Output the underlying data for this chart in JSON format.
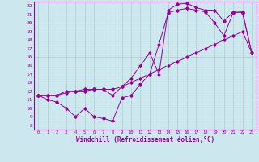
{
  "xlabel": "Windchill (Refroidissement éolien,°C)",
  "bg_color": "#cce8ee",
  "grid_color": "#aacccc",
  "line_color": "#990099",
  "xmin": 0,
  "xmax": 23,
  "ymin": 8,
  "ymax": 22,
  "yticks": [
    8,
    9,
    10,
    11,
    12,
    13,
    14,
    15,
    16,
    17,
    18,
    19,
    20,
    21,
    22
  ],
  "xticks": [
    0,
    1,
    2,
    3,
    4,
    5,
    6,
    7,
    8,
    9,
    10,
    11,
    12,
    13,
    14,
    15,
    16,
    17,
    18,
    19,
    20,
    21,
    22,
    23
  ],
  "line1_x": [
    0,
    1,
    2,
    3,
    4,
    5,
    6,
    7,
    8,
    9,
    10,
    11,
    12,
    13,
    14,
    15,
    16,
    17,
    18,
    19,
    20,
    21,
    22,
    23
  ],
  "line1_y": [
    11.5,
    11.0,
    10.7,
    10.0,
    9.0,
    10.0,
    9.0,
    8.8,
    8.5,
    11.2,
    11.5,
    12.8,
    14.0,
    17.5,
    21.2,
    21.5,
    21.7,
    21.5,
    21.3,
    20.0,
    18.5,
    21.2,
    21.3,
    16.5
  ],
  "line2_x": [
    0,
    1,
    2,
    3,
    4,
    5,
    6,
    7,
    8,
    9,
    10,
    11,
    12,
    13,
    14,
    15,
    16,
    17,
    18,
    19,
    20,
    21,
    22,
    23
  ],
  "line2_y": [
    11.5,
    11.5,
    11.5,
    11.8,
    12.0,
    12.0,
    12.2,
    12.2,
    12.2,
    12.5,
    13.0,
    13.5,
    14.0,
    14.5,
    15.0,
    15.5,
    16.0,
    16.5,
    17.0,
    17.5,
    18.0,
    18.5,
    19.0,
    16.5
  ],
  "line3_x": [
    0,
    1,
    2,
    3,
    4,
    5,
    6,
    7,
    8,
    9,
    10,
    11,
    12,
    13,
    14,
    15,
    16,
    17,
    18,
    19,
    20,
    21,
    22,
    23
  ],
  "line3_y": [
    11.5,
    11.5,
    11.5,
    12.0,
    12.0,
    12.2,
    12.2,
    12.2,
    11.5,
    12.5,
    13.5,
    15.0,
    16.5,
    14.0,
    21.5,
    22.2,
    22.3,
    21.8,
    21.5,
    21.5,
    20.2,
    21.3,
    21.2,
    16.5
  ]
}
